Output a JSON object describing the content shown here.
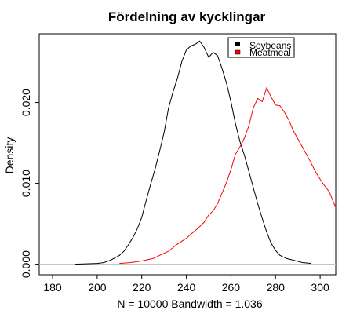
{
  "chart_data": {
    "type": "line",
    "title": "Fördelning av kycklingar",
    "ylabel": "Density",
    "xlabel": "N = 10000   Bandwidth = 1.036",
    "xlim": [
      174,
      307
    ],
    "ylim": [
      -0.0013,
      0.0285
    ],
    "x_ticks": [
      180,
      200,
      220,
      240,
      260,
      280,
      300
    ],
    "y_ticks": [
      0.0,
      0.01,
      0.02
    ],
    "y_tick_labels": [
      "0.000",
      "0.010",
      "0.020"
    ],
    "grid": false,
    "legend_position": "top-right",
    "series": [
      {
        "name": "Soybeans",
        "color": "#000000",
        "x": [
          190,
          195,
          200,
          203,
          206,
          208,
          210,
          212,
          214,
          216,
          218,
          220,
          222,
          224,
          226,
          228,
          230,
          232,
          234,
          236,
          238,
          240,
          242,
          244,
          246,
          248,
          250,
          252,
          254,
          256,
          258,
          260,
          262,
          264,
          266,
          268,
          270,
          272,
          274,
          276,
          278,
          280,
          282,
          285,
          288,
          292,
          296
        ],
        "y": [
          0,
          5e-05,
          0.0001,
          0.0002,
          0.0005,
          0.0008,
          0.0011,
          0.0016,
          0.0024,
          0.0033,
          0.0044,
          0.0058,
          0.0079,
          0.0099,
          0.0118,
          0.014,
          0.0163,
          0.0193,
          0.0213,
          0.023,
          0.0251,
          0.0265,
          0.027,
          0.0272,
          0.0276,
          0.0268,
          0.0256,
          0.0262,
          0.0258,
          0.0242,
          0.0224,
          0.0201,
          0.0174,
          0.0152,
          0.0135,
          0.0115,
          0.0095,
          0.0075,
          0.0057,
          0.004,
          0.0026,
          0.0017,
          0.0011,
          0.0007,
          0.0005,
          0.0002,
          0.0001
        ]
      },
      {
        "name": "Meatmeal",
        "color": "#ff0000",
        "x": [
          210,
          215,
          220,
          225,
          228,
          232,
          236,
          240,
          242,
          245,
          248,
          250,
          252,
          254,
          256,
          258,
          260,
          262,
          264,
          266,
          268,
          270,
          272,
          274,
          276,
          278,
          280,
          282,
          284,
          286,
          288,
          290,
          292,
          294,
          296,
          298,
          300,
          302,
          304,
          307
        ],
        "y": [
          0.0001,
          0.0002,
          0.0004,
          0.0007,
          0.0011,
          0.0016,
          0.0025,
          0.0032,
          0.0037,
          0.0044,
          0.0052,
          0.0061,
          0.0066,
          0.0075,
          0.0088,
          0.0101,
          0.0117,
          0.0136,
          0.0145,
          0.0156,
          0.0171,
          0.0193,
          0.0205,
          0.0201,
          0.0218,
          0.0207,
          0.0197,
          0.0196,
          0.0188,
          0.0178,
          0.0165,
          0.0155,
          0.0145,
          0.0135,
          0.0125,
          0.0114,
          0.0105,
          0.0097,
          0.009,
          0.007
        ]
      }
    ]
  }
}
